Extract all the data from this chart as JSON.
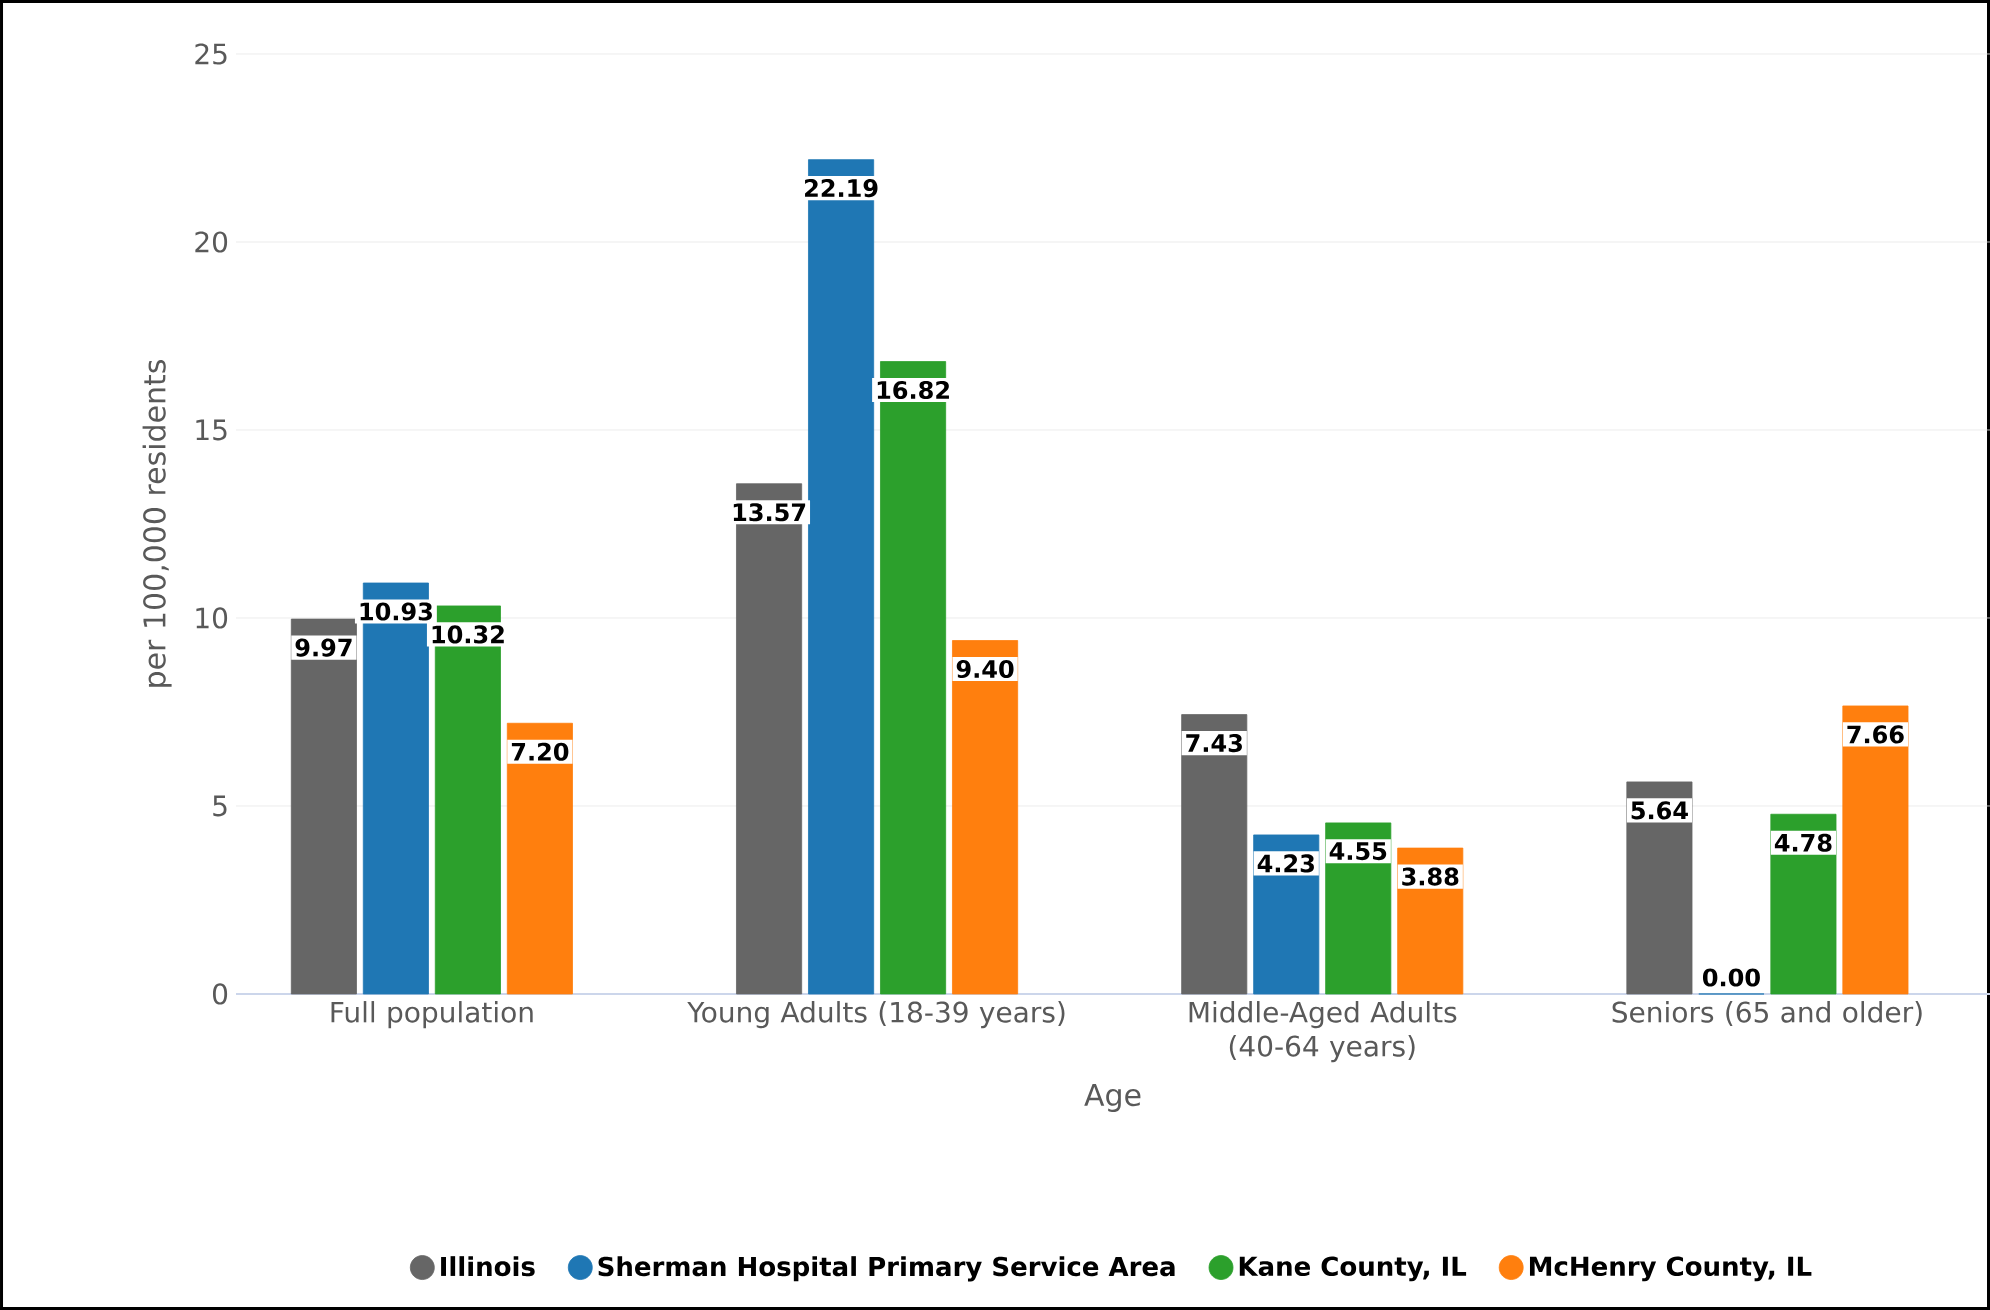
{
  "chart_data": {
    "type": "bar",
    "xlabel": "Age",
    "ylabel": "per 100,000 residents",
    "categories": [
      "Full population",
      "Young Adults (18-39 years)",
      "Middle-Aged Adults (40-64 years)",
      "Seniors (65 and older)"
    ],
    "series": [
      {
        "name": "Illinois",
        "color": "#666666",
        "values": [
          9.97,
          13.57,
          7.43,
          5.64
        ],
        "value_labels": [
          "9.97",
          "13.57",
          "7.43",
          "5.64"
        ]
      },
      {
        "name": "Sherman Hospital Primary Service Area",
        "color": "#1f77b4",
        "values": [
          10.93,
          22.19,
          4.23,
          0.0
        ],
        "value_labels": [
          "10.93",
          "22.19",
          "4.23",
          "0.00"
        ]
      },
      {
        "name": "Kane County, IL",
        "color": "#2ca02c",
        "values": [
          10.32,
          16.82,
          4.55,
          4.78
        ],
        "value_labels": [
          "10.32",
          "16.82",
          "4.55",
          "4.78"
        ]
      },
      {
        "name": "McHenry County, IL",
        "color": "#ff7f0e",
        "values": [
          7.2,
          9.4,
          3.88,
          7.66
        ],
        "value_labels": [
          "7.20",
          "9.40",
          "3.88",
          "7.66"
        ]
      }
    ],
    "ylim": [
      0,
      25
    ],
    "yticks": [
      0,
      5,
      10,
      15,
      20,
      25
    ],
    "grid": "y",
    "legend": "bottom"
  }
}
